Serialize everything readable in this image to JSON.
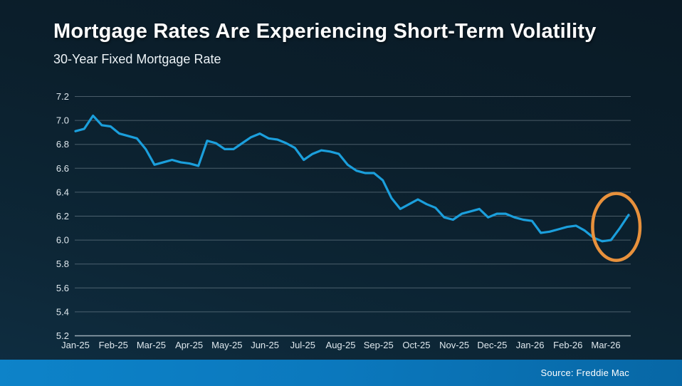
{
  "header": {
    "title": "Mortgage Rates Are Experiencing Short-Term Volatility",
    "subtitle": "30-Year Fixed Mortgage Rate"
  },
  "footer": {
    "source_label": "Source: Freddie Mac"
  },
  "colors": {
    "background_top": "#0a1a25",
    "background_bottom": "#0f2e42",
    "line": "#1b9fdc",
    "gridline": "rgba(170,186,196,0.40)",
    "baseline": "rgba(205,216,224,0.75)",
    "axis_text": "#dfe8ee",
    "title_text": "#ffffff",
    "highlight": "#e8913c",
    "footer_bar_left": "#0d83c9",
    "footer_bar_right": "#0767a5"
  },
  "chart_data": {
    "type": "line",
    "title": "Mortgage Rates Are Experiencing Short-Term Volatility",
    "subtitle": "30-Year Fixed Mortgage Rate",
    "x_unit": "weekly observations, Jan-25 through Mar-26",
    "x_tick_labels": [
      "Jan-25",
      "Feb-25",
      "Mar-25",
      "Apr-25",
      "May-25",
      "Jun-25",
      "Jul-25",
      "Aug-25",
      "Sep-25",
      "Oct-25",
      "Nov-25",
      "Dec-25",
      "Jan-26",
      "Feb-26",
      "Mar-26"
    ],
    "y_tick_labels": [
      "7.2",
      "7.0",
      "6.8",
      "6.6",
      "6.4",
      "6.2",
      "6.0",
      "5.8",
      "5.6",
      "5.4",
      "5.2"
    ],
    "ylim": [
      5.2,
      7.2
    ],
    "grid": "horizontal",
    "legend": "none",
    "series": [
      {
        "name": "30-Year Fixed Mortgage Rate",
        "values": [
          6.91,
          6.93,
          7.04,
          6.96,
          6.95,
          6.89,
          6.87,
          6.85,
          6.76,
          6.63,
          6.65,
          6.67,
          6.65,
          6.64,
          6.62,
          6.83,
          6.81,
          6.76,
          6.76,
          6.81,
          6.86,
          6.89,
          6.85,
          6.84,
          6.81,
          6.77,
          6.67,
          6.72,
          6.75,
          6.74,
          6.72,
          6.63,
          6.58,
          6.56,
          6.56,
          6.5,
          6.35,
          6.26,
          6.3,
          6.34,
          6.3,
          6.27,
          6.19,
          6.17,
          6.22,
          6.24,
          6.26,
          6.19,
          6.22,
          6.22,
          6.19,
          6.17,
          6.16,
          6.06,
          6.07,
          6.09,
          6.11,
          6.12,
          6.08,
          6.02,
          5.99,
          6.0,
          6.1,
          6.21
        ]
      }
    ],
    "annotation": {
      "shape": "ellipse",
      "meaning": "highlights the recent dip to ~6.0 and sharp rebound to ~6.2 at the end of the series",
      "center_week": 61.6,
      "center_value": 6.11,
      "radius_weeks": 2.7,
      "radius_value": 0.28,
      "color": "#e8913c"
    }
  }
}
